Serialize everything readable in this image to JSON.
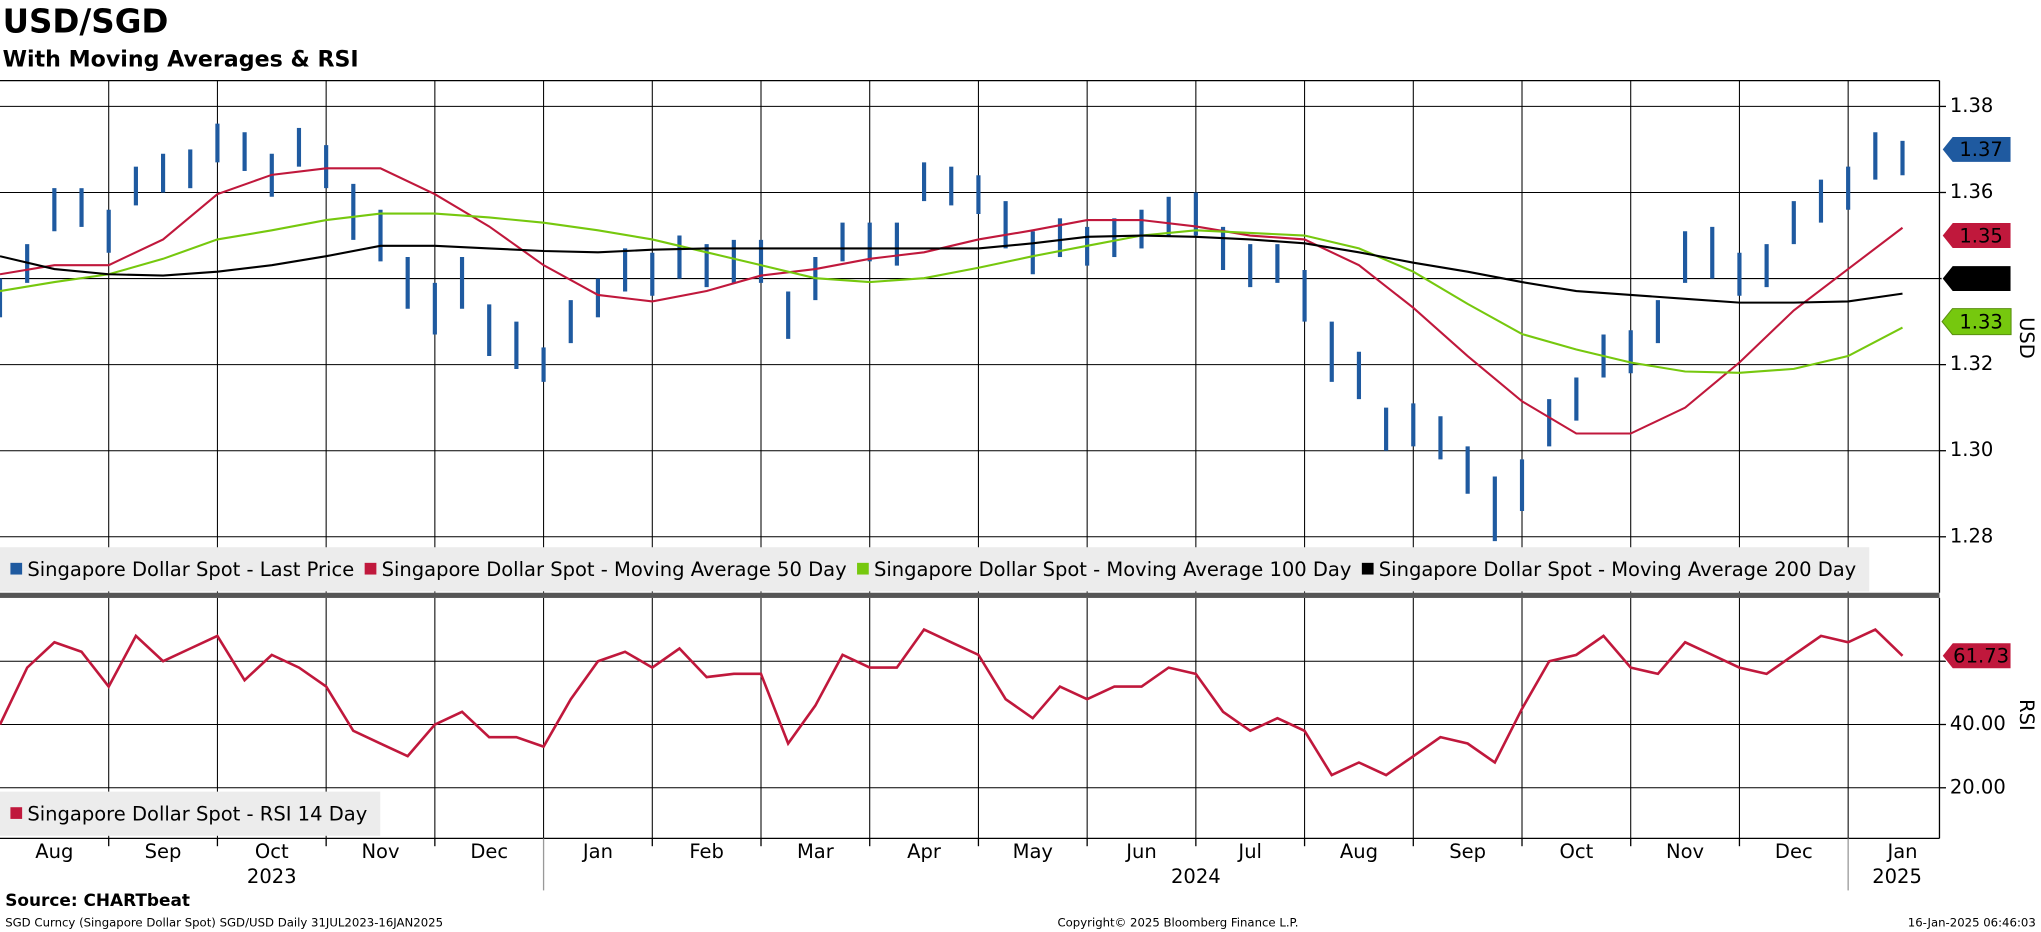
{
  "chart_data": [
    {
      "type": "ohlc",
      "title": "USD/SGD",
      "subtitle": "With Moving Averages & RSI",
      "ylabel": "USD",
      "xlim": [
        0,
        17.84
      ],
      "ylim": [
        1.267,
        1.386
      ],
      "yticks": [
        1.28,
        {
          "value": 1.3,
          "label": "1.30"
        },
        1.32,
        1.34,
        1.36,
        1.38
      ],
      "grid": true,
      "series": [
        {
          "name": "Singapore Dollar Spot - Last Price",
          "color": "#1f5aa0",
          "last_value": 1.37,
          "x": [
            0,
            0.25,
            0.5,
            0.75,
            1,
            1.25,
            1.5,
            1.75,
            2,
            2.25,
            2.5,
            2.75,
            3,
            3.25,
            3.5,
            3.75,
            4,
            4.25,
            4.5,
            4.75,
            5,
            5.25,
            5.5,
            5.75,
            6,
            6.25,
            6.5,
            6.75,
            7,
            7.25,
            7.5,
            7.75,
            8,
            8.25,
            8.5,
            8.75,
            9,
            9.25,
            9.5,
            9.75,
            10,
            10.25,
            10.5,
            10.75,
            11,
            11.25,
            11.5,
            11.75,
            12,
            12.25,
            12.5,
            12.75,
            13,
            13.25,
            13.5,
            13.75,
            14,
            14.25,
            14.5,
            14.75,
            15,
            15.25,
            15.5,
            15.75,
            16,
            16.25,
            16.5,
            16.75,
            17,
            17.25,
            17.5
          ],
          "high": [
            1.34,
            1.348,
            1.361,
            1.361,
            1.356,
            1.366,
            1.369,
            1.37,
            1.376,
            1.374,
            1.369,
            1.375,
            1.371,
            1.362,
            1.356,
            1.345,
            1.339,
            1.345,
            1.334,
            1.33,
            1.324,
            1.335,
            1.34,
            1.347,
            1.346,
            1.35,
            1.348,
            1.349,
            1.349,
            1.337,
            1.345,
            1.353,
            1.353,
            1.353,
            1.367,
            1.366,
            1.364,
            1.358,
            1.351,
            1.354,
            1.352,
            1.354,
            1.356,
            1.359,
            1.36,
            1.352,
            1.348,
            1.348,
            1.342,
            1.33,
            1.323,
            1.31,
            1.311,
            1.308,
            1.301,
            1.294,
            1.298,
            1.312,
            1.317,
            1.327,
            1.328,
            1.335,
            1.351,
            1.352,
            1.346,
            1.348,
            1.358,
            1.363,
            1.366,
            1.374,
            1.372
          ],
          "low": [
            1.331,
            1.339,
            1.351,
            1.352,
            1.346,
            1.357,
            1.36,
            1.361,
            1.367,
            1.365,
            1.359,
            1.366,
            1.361,
            1.349,
            1.344,
            1.333,
            1.327,
            1.333,
            1.322,
            1.319,
            1.316,
            1.325,
            1.331,
            1.337,
            1.336,
            1.34,
            1.338,
            1.339,
            1.339,
            1.326,
            1.335,
            1.344,
            1.344,
            1.343,
            1.358,
            1.357,
            1.355,
            1.347,
            1.341,
            1.345,
            1.343,
            1.345,
            1.347,
            1.35,
            1.35,
            1.342,
            1.338,
            1.339,
            1.33,
            1.316,
            1.312,
            1.3,
            1.301,
            1.298,
            1.29,
            1.279,
            1.286,
            1.301,
            1.307,
            1.317,
            1.318,
            1.325,
            1.339,
            1.34,
            1.336,
            1.338,
            1.348,
            1.353,
            1.356,
            1.363,
            1.364
          ]
        },
        {
          "name": "Singapore Dollar Spot - Moving Average 50 Day",
          "color": "#c0183c",
          "last_value": 1.35,
          "x": [
            0,
            0.5,
            1,
            1.5,
            2,
            2.5,
            3,
            3.5,
            4,
            4.5,
            5,
            5.5,
            6,
            6.5,
            7,
            7.5,
            8,
            8.5,
            9,
            9.5,
            10,
            10.5,
            11,
            11.5,
            12,
            12.5,
            13,
            13.5,
            14,
            14.5,
            15,
            15.5,
            16,
            16.5,
            17,
            17.5
          ],
          "values": [
            1.341,
            1.3431,
            1.3431,
            1.3491,
            1.3596,
            1.3641,
            1.3656,
            1.3656,
            1.3596,
            1.3521,
            1.3431,
            1.3362,
            1.3347,
            1.3371,
            1.3407,
            1.3422,
            1.3446,
            1.3461,
            1.3491,
            1.3512,
            1.3536,
            1.3536,
            1.3521,
            1.35,
            1.3491,
            1.3431,
            1.3332,
            1.322,
            1.3115,
            1.304,
            1.304,
            1.31,
            1.3205,
            1.3326,
            1.3422,
            1.3518
          ]
        },
        {
          "name": "Singapore Dollar Spot - Moving Average 100 Day",
          "color": "#76c80e",
          "last_value": 1.33,
          "x": [
            0,
            0.5,
            1,
            1.5,
            2,
            2.5,
            3,
            3.5,
            4,
            4.5,
            5,
            5.5,
            6,
            6.5,
            7,
            7.5,
            8,
            8.5,
            9,
            9.5,
            10,
            10.5,
            11,
            11.5,
            12,
            12.5,
            13,
            13.5,
            14,
            14.5,
            15,
            15.5,
            16,
            16.5,
            17,
            17.5
          ],
          "values": [
            1.3371,
            1.3392,
            1.341,
            1.3446,
            1.3491,
            1.3512,
            1.3536,
            1.3551,
            1.3551,
            1.3542,
            1.353,
            1.3512,
            1.3491,
            1.3461,
            1.3431,
            1.3401,
            1.3392,
            1.3401,
            1.3425,
            1.3452,
            1.3476,
            1.35,
            1.3512,
            1.3506,
            1.35,
            1.347,
            1.3416,
            1.3341,
            1.3271,
            1.3235,
            1.3205,
            1.3184,
            1.3181,
            1.319,
            1.322,
            1.3286
          ]
        },
        {
          "name": "Singapore Dollar Spot - Moving Average 200 Day",
          "color": "#000000",
          "last_value": 1.34,
          "x": [
            0,
            0.5,
            1,
            1.5,
            2,
            2.5,
            3,
            3.5,
            4,
            4.5,
            5,
            5.5,
            6,
            6.5,
            7,
            7.5,
            8,
            8.5,
            9,
            9.5,
            10,
            10.5,
            11,
            11.5,
            12,
            12.5,
            13,
            13.5,
            14,
            14.5,
            15,
            15.5,
            16,
            16.5,
            17,
            17.5
          ],
          "values": [
            1.3452,
            1.3422,
            1.341,
            1.3407,
            1.3416,
            1.3431,
            1.3452,
            1.3476,
            1.3476,
            1.347,
            1.3464,
            1.3461,
            1.3467,
            1.347,
            1.347,
            1.347,
            1.347,
            1.347,
            1.347,
            1.3482,
            1.3497,
            1.35,
            1.3497,
            1.3491,
            1.3482,
            1.3461,
            1.3437,
            1.3416,
            1.3392,
            1.3371,
            1.3362,
            1.3353,
            1.3344,
            1.3344,
            1.3347,
            1.3365
          ]
        }
      ]
    },
    {
      "type": "line",
      "ylabel": "RSI",
      "xlim": [
        0,
        17.84
      ],
      "ylim": [
        4,
        80
      ],
      "yticks": [
        {
          "value": 20,
          "label": "20.00"
        },
        {
          "value": 40,
          "label": "40.00"
        },
        {
          "value": 60,
          "label": "60.00"
        }
      ],
      "grid": true,
      "xticks": [
        {
          "value": 0.5,
          "label": "Aug"
        },
        {
          "value": 1.5,
          "label": "Sep"
        },
        {
          "value": 2.5,
          "label": "Oct"
        },
        {
          "value": 3.5,
          "label": "Nov"
        },
        {
          "value": 4.5,
          "label": "Dec"
        },
        {
          "value": 5.5,
          "label": "Jan"
        },
        {
          "value": 6.5,
          "label": "Feb"
        },
        {
          "value": 7.5,
          "label": "Mar"
        },
        {
          "value": 8.5,
          "label": "Apr"
        },
        {
          "value": 9.5,
          "label": "May"
        },
        {
          "value": 10.5,
          "label": "Jun"
        },
        {
          "value": 11.5,
          "label": "Jul"
        },
        {
          "value": 12.5,
          "label": "Aug"
        },
        {
          "value": 13.5,
          "label": "Sep"
        },
        {
          "value": 14.5,
          "label": "Oct"
        },
        {
          "value": 15.5,
          "label": "Nov"
        },
        {
          "value": 16.5,
          "label": "Dec"
        },
        {
          "value": 17.5,
          "label": "Jan"
        }
      ],
      "xticks_years": [
        {
          "value": 2.5,
          "label": "2023"
        },
        {
          "value": 11,
          "label": "2024"
        },
        {
          "value": 17.45,
          "label": "2025"
        }
      ],
      "series": [
        {
          "name": "Singapore Dollar Spot - RSI 14 Day",
          "color": "#c0183c",
          "last_value": 61.73,
          "x": [
            0,
            0.25,
            0.5,
            0.75,
            1,
            1.25,
            1.5,
            1.75,
            2,
            2.25,
            2.5,
            2.75,
            3,
            3.25,
            3.5,
            3.75,
            4,
            4.25,
            4.5,
            4.75,
            5,
            5.25,
            5.5,
            5.75,
            6,
            6.25,
            6.5,
            6.75,
            7,
            7.25,
            7.5,
            7.75,
            8,
            8.25,
            8.5,
            8.75,
            9,
            9.25,
            9.5,
            9.75,
            10,
            10.25,
            10.5,
            10.75,
            11,
            11.25,
            11.5,
            11.75,
            12,
            12.25,
            12.5,
            12.75,
            13,
            13.25,
            13.5,
            13.75,
            14,
            14.25,
            14.5,
            14.75,
            15,
            15.25,
            15.5,
            15.75,
            16,
            16.25,
            16.5,
            16.75,
            17,
            17.25,
            17.5
          ],
          "values": [
            40,
            58,
            66,
            63,
            52,
            68,
            60,
            64,
            68,
            54,
            62,
            58,
            52,
            38,
            34,
            30,
            40,
            44,
            36,
            36,
            33,
            48,
            60,
            63,
            58,
            64,
            55,
            56,
            56,
            34,
            46,
            62,
            58,
            58,
            70,
            66,
            62,
            48,
            42,
            52,
            48,
            52,
            52,
            58,
            56,
            44,
            38,
            42,
            38,
            24,
            28,
            24,
            30,
            36,
            34,
            28,
            45,
            60,
            62,
            68,
            58,
            56,
            66,
            62,
            58,
            56,
            62,
            68,
            66,
            70,
            61.73
          ]
        }
      ]
    }
  ],
  "footer": {
    "source": "Source: CHARTbeat",
    "description": "SGD Curncy (Singapore Dollar Spot) SGD/USD  Daily 31JUL2023-16JAN2025",
    "copyright": "Copyright© 2025 Bloomberg Finance L.P.",
    "timestamp": "16-Jan-2025 06:46:03"
  }
}
